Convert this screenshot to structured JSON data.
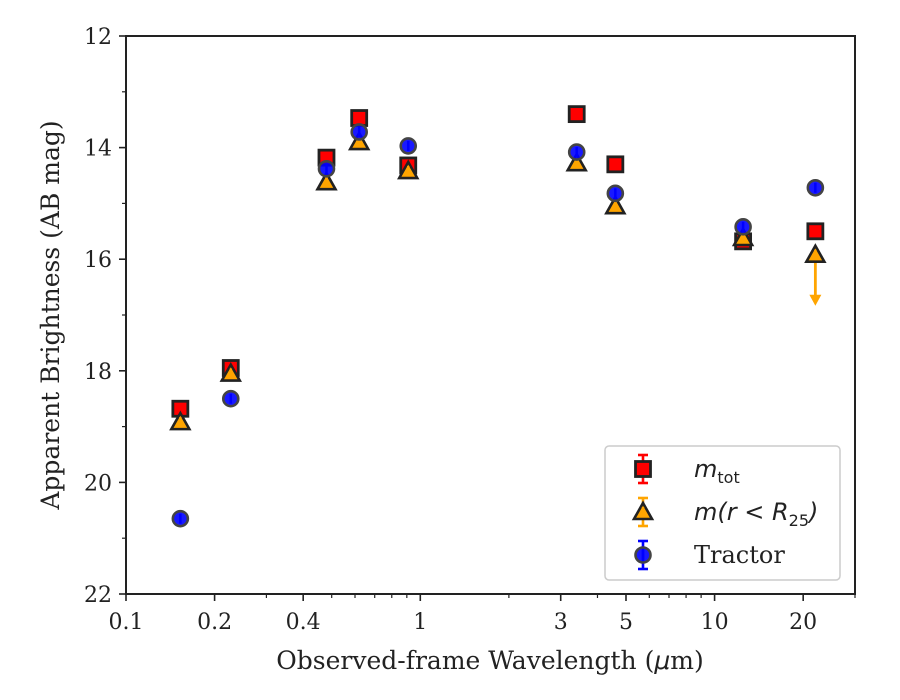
{
  "chart_data": {
    "type": "scatter",
    "xlabel_prefix": "Observed-frame Wavelength (",
    "xlabel_unit_symbol": "μ",
    "xlabel_suffix": "m)",
    "ylabel": "Apparent Brightness (AB mag)",
    "xscale": "log",
    "xlim": [
      0.1,
      30
    ],
    "ylim": [
      22,
      12
    ],
    "y_inverted": true,
    "x_ticks": [
      {
        "value": 0.1,
        "label": "0.1"
      },
      {
        "value": 0.2,
        "label": "0.2"
      },
      {
        "value": 0.4,
        "label": "0.4"
      },
      {
        "value": 1,
        "label": "1"
      },
      {
        "value": 3,
        "label": "3"
      },
      {
        "value": 5,
        "label": "5"
      },
      {
        "value": 10,
        "label": "10"
      },
      {
        "value": 20,
        "label": "20"
      }
    ],
    "x_minor_ticks": [
      0.3,
      0.5,
      0.6,
      0.7,
      0.8,
      0.9,
      2,
      4,
      6,
      7,
      8,
      9,
      30
    ],
    "y_ticks": [
      {
        "value": 12,
        "label": "12"
      },
      {
        "value": 14,
        "label": "14"
      },
      {
        "value": 16,
        "label": "16"
      },
      {
        "value": 18,
        "label": "18"
      },
      {
        "value": 20,
        "label": "20"
      },
      {
        "value": 22,
        "label": "22"
      }
    ],
    "y_minor_ticks": [
      13,
      15,
      17,
      19,
      21
    ],
    "legend_position": "lower-right",
    "series": [
      {
        "name": "m_tot",
        "legend_base": "m",
        "legend_sub": "tot",
        "marker": "square",
        "color": "#ff0000",
        "edge": "#222222",
        "points": [
          {
            "x": 0.153,
            "y": 18.68
          },
          {
            "x": 0.227,
            "y": 17.95
          },
          {
            "x": 0.48,
            "y": 14.18
          },
          {
            "x": 0.62,
            "y": 13.47
          },
          {
            "x": 0.91,
            "y": 14.32
          },
          {
            "x": 3.4,
            "y": 13.4
          },
          {
            "x": 4.6,
            "y": 14.3
          },
          {
            "x": 12.5,
            "y": 15.68
          },
          {
            "x": 22.0,
            "y": 15.5
          }
        ]
      },
      {
        "name": "m(r < R25)",
        "legend_base": "m(r < R",
        "legend_sub": "25",
        "legend_tail": ")",
        "marker": "triangle",
        "color": "#ffa500",
        "edge": "#222222",
        "points": [
          {
            "x": 0.153,
            "y": 18.92
          },
          {
            "x": 0.227,
            "y": 18.05
          },
          {
            "x": 0.48,
            "y": 14.62
          },
          {
            "x": 0.62,
            "y": 13.9
          },
          {
            "x": 0.91,
            "y": 14.42
          },
          {
            "x": 3.4,
            "y": 14.28
          },
          {
            "x": 4.6,
            "y": 15.05
          },
          {
            "x": 12.5,
            "y": 15.62
          },
          {
            "x": 22.0,
            "y": 15.92,
            "upper_limit": true
          }
        ]
      },
      {
        "name": "Tractor",
        "legend_base": "Tractor",
        "marker": "circle",
        "color": "#0000ff",
        "edge": "#444444",
        "points": [
          {
            "x": 0.153,
            "y": 20.65
          },
          {
            "x": 0.227,
            "y": 18.5
          },
          {
            "x": 0.48,
            "y": 14.38
          },
          {
            "x": 0.62,
            "y": 13.72
          },
          {
            "x": 0.91,
            "y": 13.97
          },
          {
            "x": 3.4,
            "y": 14.08
          },
          {
            "x": 4.6,
            "y": 14.82
          },
          {
            "x": 12.5,
            "y": 15.42
          },
          {
            "x": 22.0,
            "y": 14.72
          }
        ]
      }
    ]
  }
}
